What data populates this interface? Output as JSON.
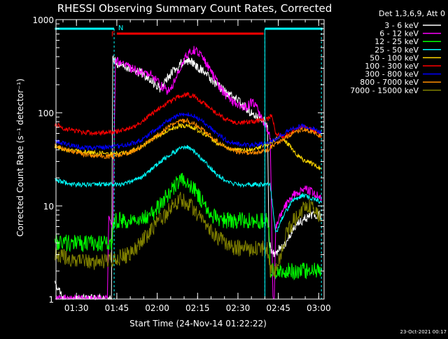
{
  "chart_data": {
    "type": "line",
    "title": "RHESSI Observing Summary Count Rates, Corrected",
    "ylabel": "Corrected Count Rate (s⁻¹ detector⁻¹)",
    "xlabel": "Start Time (24-Nov-14 01:22:22)",
    "footer_date": "23-Oct-2021 00:17",
    "y_scale": "log",
    "ylim": [
      1,
      1000
    ],
    "xlim_minutes": [
      82.4,
      182
    ],
    "y_ticks": [
      {
        "value": 1,
        "label": "1"
      },
      {
        "value": 10,
        "label": "10"
      },
      {
        "value": 100,
        "label": "100"
      },
      {
        "value": 1000,
        "label": "1000"
      }
    ],
    "x_ticks": [
      {
        "minutes": 90,
        "label": "01:30"
      },
      {
        "minutes": 105,
        "label": "01:45"
      },
      {
        "minutes": 120,
        "label": "02:00"
      },
      {
        "minutes": 135,
        "label": "02:15"
      },
      {
        "minutes": 150,
        "label": "02:30"
      },
      {
        "minutes": 165,
        "label": "02:45"
      },
      {
        "minutes": 180,
        "label": "03:00"
      }
    ],
    "legend_header": "Det 1,3,6,9, Att 0",
    "legend_position": "top-right",
    "series": [
      {
        "name": "3 - 6 keV",
        "color": "#ffffff",
        "x": [
          82,
          85,
          92,
          100,
          103,
          103.5,
          104.5,
          107,
          110,
          114,
          118,
          121,
          124,
          127,
          129,
          131,
          134,
          137,
          140,
          143,
          146,
          149,
          152,
          154,
          156,
          158,
          160,
          161,
          161.5,
          163,
          168,
          171,
          174,
          177,
          180,
          181
        ],
        "y": [
          1.5,
          1,
          1,
          1,
          1,
          380,
          350,
          320,
          290,
          270,
          220,
          180,
          240,
          300,
          340,
          370,
          330,
          280,
          230,
          190,
          160,
          140,
          120,
          105,
          95,
          88,
          80,
          70,
          4,
          3,
          4,
          6,
          7,
          8,
          8,
          8
        ]
      },
      {
        "name": "6 - 12 keV",
        "color": "#ff00ff",
        "x": [
          82,
          101.5,
          102,
          103,
          103.5,
          104.5,
          107,
          110,
          114,
          118,
          121,
          124,
          127,
          129,
          131,
          134,
          137,
          140,
          143,
          146,
          149,
          152,
          155,
          157,
          159,
          161,
          162,
          163,
          163.5,
          164,
          166,
          169,
          172,
          175,
          178,
          181
        ],
        "y": [
          1,
          1,
          7,
          6,
          6,
          380,
          340,
          300,
          270,
          250,
          200,
          170,
          230,
          330,
          420,
          480,
          380,
          280,
          190,
          150,
          125,
          110,
          130,
          120,
          80,
          65,
          55,
          1,
          1,
          6,
          8,
          12,
          14,
          15,
          14,
          12
        ]
      },
      {
        "name": "12 - 25 keV",
        "color": "#00ff00",
        "x": [
          82,
          85,
          90,
          95,
          100,
          103,
          104,
          106,
          110,
          114,
          118,
          122,
          126,
          129,
          131,
          134,
          137,
          140,
          143,
          146,
          150,
          154,
          157,
          160,
          161.5,
          162,
          165,
          170,
          175,
          181
        ],
        "y": [
          4,
          4,
          4,
          4,
          4,
          4,
          7,
          7,
          7,
          7,
          8,
          11,
          16,
          19,
          18,
          15,
          11,
          8,
          7,
          7,
          7,
          7,
          7,
          7,
          7,
          2,
          2,
          2,
          2,
          2
        ]
      },
      {
        "name": "25 - 50 keV",
        "color": "#00ffff",
        "x": [
          82,
          88,
          94,
          100,
          104,
          106,
          110,
          115,
          120,
          125,
          129,
          131,
          134,
          138,
          142,
          146,
          150,
          155,
          160,
          162,
          164,
          167,
          170,
          174,
          178,
          181
        ],
        "y": [
          19,
          17,
          17,
          17,
          17,
          17,
          18,
          21,
          28,
          36,
          42,
          43,
          38,
          29,
          22,
          18,
          17,
          17,
          17,
          17,
          5,
          8,
          11,
          13,
          12,
          11
        ]
      },
      {
        "name": "50 - 100 keV",
        "color": "#ffd700",
        "x": [
          82,
          86,
          92,
          98,
          104,
          108,
          112,
          116,
          120,
          124,
          128,
          131,
          134,
          138,
          142,
          146,
          150,
          154,
          158,
          161,
          163,
          166,
          169,
          172,
          175,
          178,
          181
        ],
        "y": [
          44,
          40,
          38,
          37,
          36,
          37,
          40,
          47,
          56,
          65,
          72,
          73,
          68,
          58,
          48,
          42,
          40,
          40,
          42,
          46,
          50,
          55,
          45,
          35,
          30,
          28,
          25
        ]
      },
      {
        "name": "100 - 300 keV",
        "color": "#ff0000",
        "x": [
          82,
          86,
          92,
          98,
          104,
          108,
          112,
          116,
          120,
          124,
          128,
          131,
          134,
          138,
          142,
          146,
          150,
          154,
          158,
          161,
          162.5,
          164,
          167,
          171,
          175,
          178,
          181
        ],
        "y": [
          75,
          67,
          62,
          60,
          62,
          66,
          72,
          88,
          108,
          128,
          148,
          158,
          148,
          122,
          98,
          84,
          78,
          80,
          82,
          85,
          95,
          60,
          55,
          65,
          72,
          65,
          55
        ]
      },
      {
        "name": "300 - 800 keV",
        "color": "#0000ff",
        "x": [
          82,
          86,
          92,
          98,
          104,
          108,
          112,
          116,
          120,
          124,
          128,
          131,
          134,
          138,
          142,
          146,
          150,
          154,
          158,
          161,
          163,
          166,
          170,
          174,
          178,
          181
        ],
        "y": [
          50,
          46,
          42,
          42,
          43,
          45,
          48,
          55,
          68,
          83,
          95,
          98,
          92,
          76,
          60,
          50,
          46,
          45,
          46,
          48,
          50,
          58,
          68,
          72,
          68,
          60
        ]
      },
      {
        "name": "800 - 7000 keV",
        "color": "#ff8c00",
        "x": [
          82,
          86,
          92,
          98,
          104,
          108,
          112,
          116,
          120,
          124,
          128,
          131,
          134,
          138,
          142,
          146,
          150,
          154,
          158,
          161,
          163,
          166,
          170,
          174,
          178,
          181
        ],
        "y": [
          44,
          40,
          36,
          34,
          34,
          36,
          40,
          47,
          57,
          70,
          80,
          82,
          76,
          62,
          50,
          42,
          38,
          37,
          38,
          40,
          44,
          50,
          60,
          66,
          62,
          56
        ]
      },
      {
        "name": "7000 - 15000 keV",
        "color": "#808000",
        "x": [
          82,
          86,
          92,
          98,
          102,
          106,
          110,
          114,
          118,
          122,
          126,
          129,
          131,
          134,
          137,
          140,
          143,
          146,
          150,
          154,
          158,
          161,
          162,
          164,
          168,
          172,
          176,
          179,
          181
        ],
        "y": [
          3,
          2.8,
          2.5,
          2.5,
          2.6,
          2.8,
          3,
          4,
          5.5,
          7.5,
          10,
          12,
          11,
          9,
          7,
          5.5,
          4.5,
          3.8,
          3.5,
          3.5,
          3.5,
          3.5,
          2,
          2,
          5,
          8,
          10,
          9,
          7
        ]
      }
    ]
  },
  "flags": {
    "top_cyan_segments_minutes": [
      [
        82,
        104
      ],
      [
        160,
        181.5
      ]
    ],
    "dashed_cyan_minutes": [
      104,
      160,
      181
    ],
    "solid_cyan_minutes": [
      160
    ],
    "red_flag_range_minutes": [
      105,
      159.5
    ],
    "f_label": "F",
    "n_label": "N"
  }
}
